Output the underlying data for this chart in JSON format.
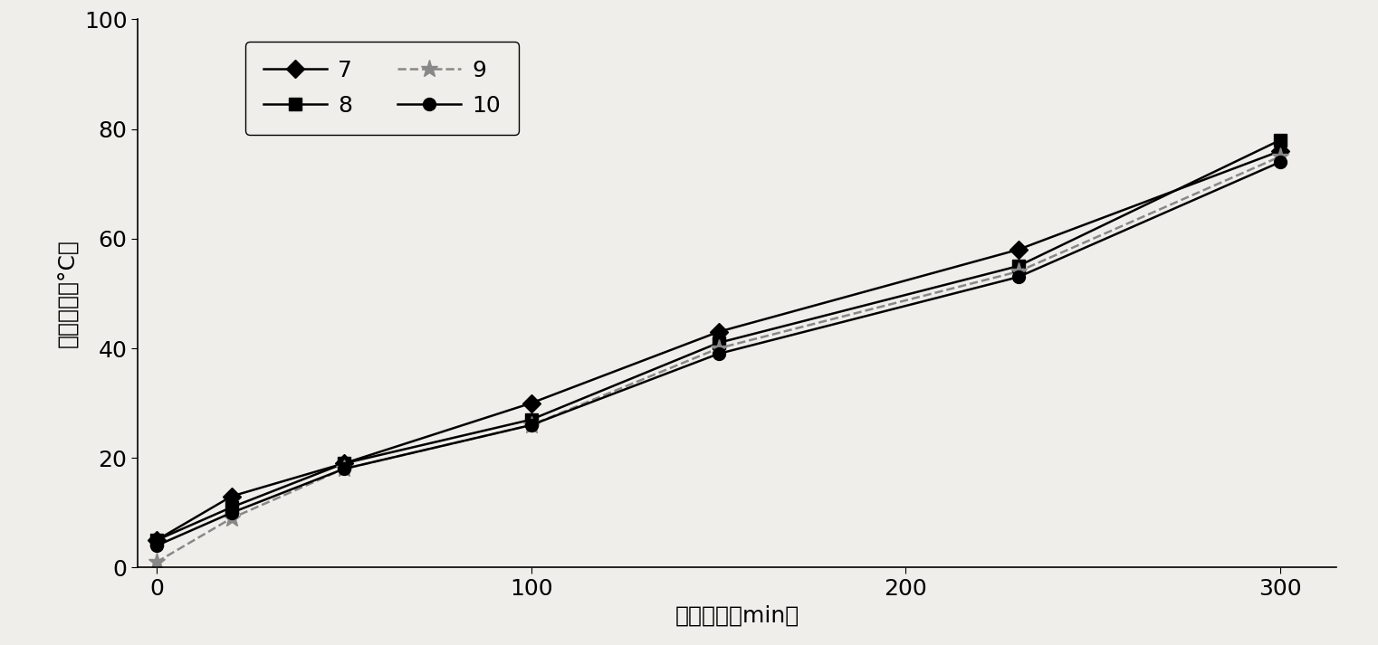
{
  "x": [
    0,
    20,
    50,
    100,
    150,
    230,
    300
  ],
  "series": {
    "7": [
      5,
      13,
      19,
      30,
      43,
      58,
      76
    ],
    "8": [
      5,
      11,
      19,
      27,
      41,
      55,
      78
    ],
    "9": [
      1,
      9,
      18,
      26,
      40,
      54,
      75
    ],
    "10": [
      4,
      10,
      18,
      26,
      39,
      53,
      74
    ]
  },
  "markers": {
    "7": "D",
    "8": "s",
    "9": "*",
    "10": "o"
  },
  "colors": {
    "7": "#000000",
    "8": "#000000",
    "9": "#888888",
    "10": "#000000"
  },
  "linestyles": {
    "7": "-",
    "8": "-",
    "9": "--",
    "10": "-"
  },
  "markersize": {
    "7": 10,
    "8": 10,
    "9": 14,
    "10": 10
  },
  "xlabel": "反应时间（min）",
  "ylabel": "聚合温度（°C）",
  "xlim": [
    -5,
    315
  ],
  "ylim": [
    0,
    100
  ],
  "xticks": [
    0,
    100,
    200,
    300
  ],
  "yticks": [
    0,
    20,
    40,
    60,
    80,
    100
  ],
  "legend_order": [
    "7",
    "8",
    "9",
    "10"
  ],
  "background_color": "#f0eeea",
  "linewidth": 1.8,
  "xlabel_fontsize": 18,
  "ylabel_fontsize": 18,
  "tick_fontsize": 18
}
